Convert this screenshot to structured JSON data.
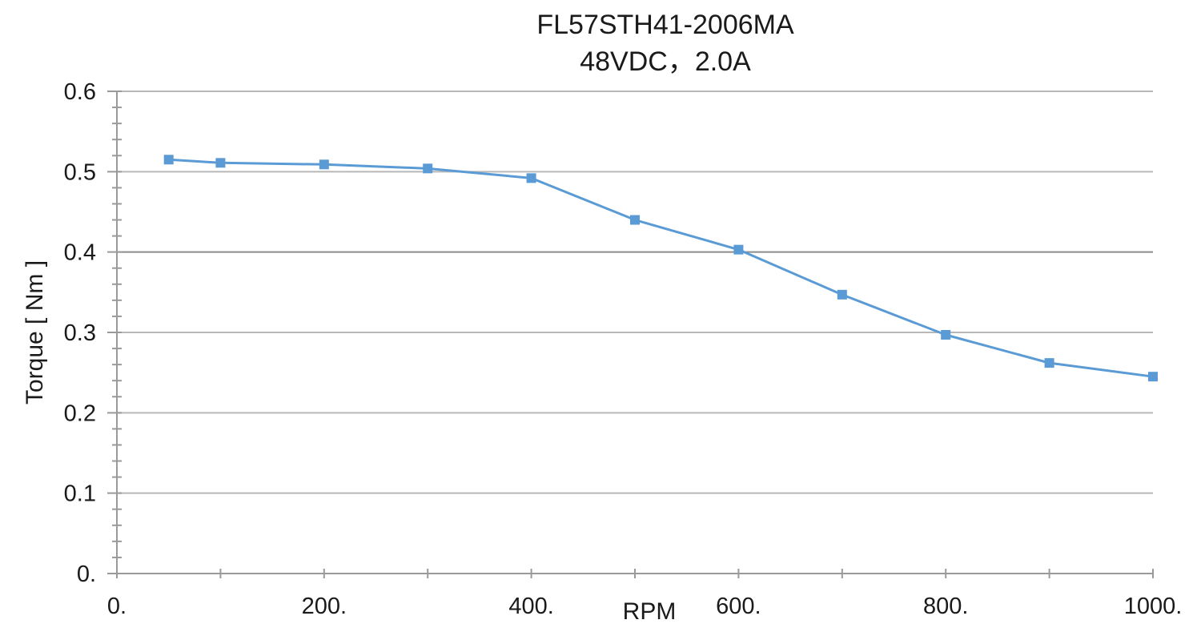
{
  "chart_data": {
    "type": "line",
    "title": "FL57STH41-2006MA",
    "subtitle": "48VDC，2.0A",
    "xlabel": "RPM",
    "ylabel": "Torque [ Nm ]",
    "xlim": [
      0,
      1000
    ],
    "ylim": [
      0,
      0.6
    ],
    "x_ticks": [
      0,
      200,
      400,
      600,
      800,
      1000
    ],
    "x_tick_labels": [
      "0.",
      "200.",
      "400.",
      "600.",
      "800.",
      "1000."
    ],
    "y_ticks": [
      0,
      0.1,
      0.2,
      0.3,
      0.4,
      0.5,
      0.6
    ],
    "y_tick_labels": [
      "0.",
      "0.1",
      "0.2",
      "0.3",
      "0.4",
      "0.5",
      "0.6"
    ],
    "grid": true,
    "legend": "none",
    "series": [
      {
        "color": "#5b9bd5",
        "marker": "square",
        "x": [
          50,
          100,
          200,
          300,
          400,
          500,
          600,
          700,
          800,
          900,
          1000
        ],
        "y": [
          0.515,
          0.511,
          0.509,
          0.504,
          0.492,
          0.44,
          0.403,
          0.347,
          0.297,
          0.262,
          0.245
        ]
      }
    ]
  }
}
